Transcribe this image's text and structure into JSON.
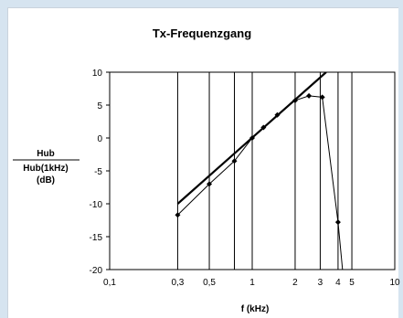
{
  "chart_data": {
    "type": "line",
    "title": "Tx-Frequenzgang",
    "xlabel": "f (kHz)",
    "ylabel": [
      "Hub",
      "Hub(1kHz)",
      "(dB)"
    ],
    "x_scale": "log",
    "xlim": [
      0.1,
      10
    ],
    "ylim": [
      -20,
      10
    ],
    "x_ticks": [
      {
        "value": 0.1,
        "label": "0,1"
      },
      {
        "value": 0.3,
        "label": "0,3"
      },
      {
        "value": 0.5,
        "label": "0,5"
      },
      {
        "value": 1,
        "label": "1"
      },
      {
        "value": 2,
        "label": "2"
      },
      {
        "value": 3,
        "label": "3"
      },
      {
        "value": 4,
        "label": "4"
      },
      {
        "value": 5,
        "label": "5"
      },
      {
        "value": 10,
        "label": "10"
      }
    ],
    "x_gridlines": [
      0.3,
      0.5,
      0.75,
      1,
      2,
      3,
      4,
      5
    ],
    "y_ticks": [
      {
        "value": 10,
        "label": "10"
      },
      {
        "value": 5,
        "label": "5"
      },
      {
        "value": 0,
        "label": "0"
      },
      {
        "value": -5,
        "label": "-5"
      },
      {
        "value": -10,
        "label": "-10"
      },
      {
        "value": -15,
        "label": "-15"
      },
      {
        "value": -20,
        "label": "-20"
      }
    ],
    "grid": "vertical",
    "series": [
      {
        "kind": "measured",
        "color": "#000000",
        "marker": "diamond",
        "x": [
          0.3,
          0.5,
          0.75,
          1,
          1.2,
          1.5,
          2,
          2.5,
          3.1,
          4.0,
          4.3
        ],
        "y": [
          -11.7,
          -7.0,
          -3.5,
          0,
          1.6,
          3.5,
          5.7,
          6.4,
          6.2,
          -12.8,
          -20
        ]
      },
      {
        "kind": "reference",
        "color": "#000000",
        "x": [
          0.3,
          3.3
        ],
        "y": [
          -10,
          10
        ]
      }
    ]
  }
}
